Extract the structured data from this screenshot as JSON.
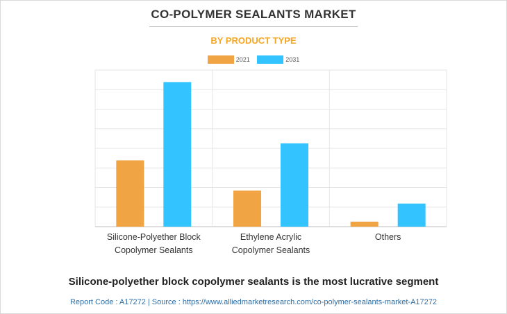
{
  "chart_data": {
    "type": "bar",
    "title": "CO-POLYMER SEALANTS MARKET",
    "subtitle": "BY PRODUCT TYPE",
    "categories": [
      [
        "Silicone-Polyether Block",
        "Copolymer Sealants"
      ],
      [
        "Ethylene Acrylic",
        "Copolymer Sealants"
      ],
      [
        "Others"
      ]
    ],
    "series": [
      {
        "name": "2021",
        "color": "#f0a444",
        "values": [
          3.3,
          1.8,
          0.25
        ]
      },
      {
        "name": "2031",
        "color": "#33c4ff",
        "values": [
          7.2,
          4.15,
          1.15
        ]
      }
    ],
    "ylim": [
      0,
      7.8
    ],
    "y_gridlines": 8,
    "grid": true,
    "y_tick_labels_shown": false,
    "legend_position": "top-center"
  },
  "takeaway": "Silicone-polyether block copolymer sealants is the most lucrative segment",
  "footer": "Report Code : A17272  |  Source : https://www.alliedmarketresearch.com/co-polymer-sealants-market-A17272"
}
